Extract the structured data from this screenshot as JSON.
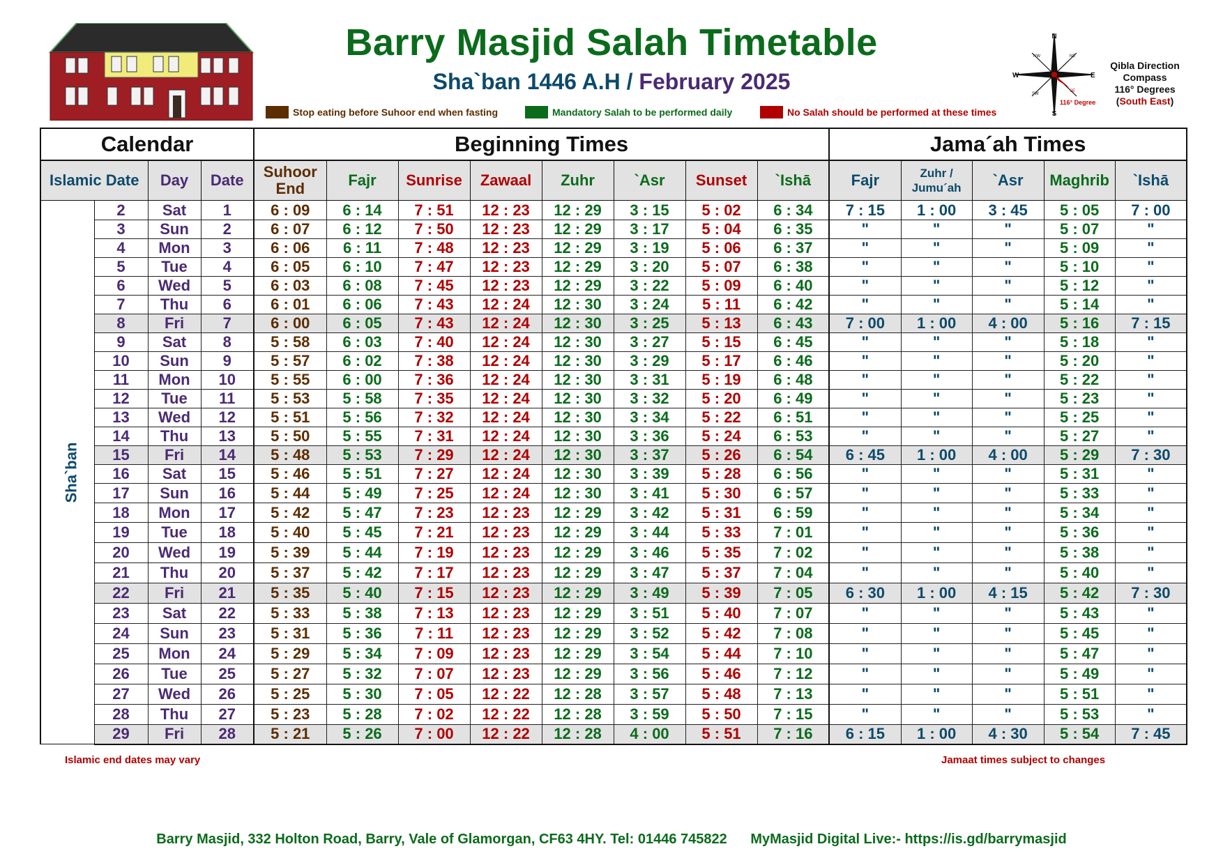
{
  "header": {
    "title": "Barry Masjid Salah Timetable",
    "islamic_month": "Sha`ban 1446 A.H",
    "separator": "/",
    "gregorian_month": "February 2025"
  },
  "legend": [
    {
      "label": "Stop eating before Suhoor end when fasting",
      "color": "#5c2d00"
    },
    {
      "label": "Mandatory Salah to be performed daily",
      "color": "#0b6b1c"
    },
    {
      "label": "No Salah should be performed at these times",
      "color": "#b00000"
    }
  ],
  "compass": {
    "labels": {
      "n": "N",
      "s": "S",
      "e": "E",
      "w": "W",
      "nw": "NW",
      "ne": "NE",
      "sw": "SW",
      "se": "SE"
    },
    "degree_label": "116° Degrees",
    "qibla_line1": "Qibla Direction",
    "qibla_line2": "Compass",
    "qibla_line3": "116° Degrees",
    "qibla_open": "(",
    "qibla_dir": "South East",
    "qibla_close": ")"
  },
  "table": {
    "groups": {
      "calendar": "Calendar",
      "beginning": "Beginning Times",
      "jamaah": "Jama´ah Times"
    },
    "columns": {
      "islamic_date": "Islamic Date",
      "day": "Day",
      "date": "Date",
      "suhoor_1": "Suhoor",
      "suhoor_2": "End",
      "fajr": "Fajr",
      "sunrise": "Sunrise",
      "zawaal": "Zawaal",
      "zuhr": "Zuhr",
      "asr": "`Asr",
      "sunset": "Sunset",
      "isha": "`Ishā",
      "j_fajr": "Fajr",
      "j_zuhr_1": "Zuhr /",
      "j_zuhr_2": "Jumu´ah",
      "j_asr": "`Asr",
      "j_maghrib": "Maghrib",
      "j_isha": "`Ishā"
    },
    "month_label": "Sha`ban",
    "rows": [
      {
        "islamic": "2",
        "day": "Sat",
        "date": "1",
        "suhoor": "6 : 09",
        "fajr": "6 : 14",
        "sunrise": "7 : 51",
        "zawaal": "12 : 23",
        "zuhr": "12 : 29",
        "asr": "3 : 15",
        "sunset": "5 : 02",
        "isha": "6 : 34",
        "jfajr": "7 : 15",
        "jzuhr": "1 : 00",
        "jasr": "3 : 45",
        "jmaghrib": "5 : 05",
        "jisha": "7 : 00"
      },
      {
        "islamic": "3",
        "day": "Sun",
        "date": "2",
        "suhoor": "6 : 07",
        "fajr": "6 : 12",
        "sunrise": "7 : 50",
        "zawaal": "12 : 23",
        "zuhr": "12 : 29",
        "asr": "3 : 17",
        "sunset": "5 : 04",
        "isha": "6 : 35",
        "jfajr": "\"",
        "jzuhr": "\"",
        "jasr": "\"",
        "jmaghrib": "5 : 07",
        "jisha": "\""
      },
      {
        "islamic": "4",
        "day": "Mon",
        "date": "3",
        "suhoor": "6 : 06",
        "fajr": "6 : 11",
        "sunrise": "7 : 48",
        "zawaal": "12 : 23",
        "zuhr": "12 : 29",
        "asr": "3 : 19",
        "sunset": "5 : 06",
        "isha": "6 : 37",
        "jfajr": "\"",
        "jzuhr": "\"",
        "jasr": "\"",
        "jmaghrib": "5 : 09",
        "jisha": "\""
      },
      {
        "islamic": "5",
        "day": "Tue",
        "date": "4",
        "suhoor": "6 : 05",
        "fajr": "6 : 10",
        "sunrise": "7 : 47",
        "zawaal": "12 : 23",
        "zuhr": "12 : 29",
        "asr": "3 : 20",
        "sunset": "5 : 07",
        "isha": "6 : 38",
        "jfajr": "\"",
        "jzuhr": "\"",
        "jasr": "\"",
        "jmaghrib": "5 : 10",
        "jisha": "\""
      },
      {
        "islamic": "6",
        "day": "Wed",
        "date": "5",
        "suhoor": "6 : 03",
        "fajr": "6 : 08",
        "sunrise": "7 : 45",
        "zawaal": "12 : 23",
        "zuhr": "12 : 29",
        "asr": "3 : 22",
        "sunset": "5 : 09",
        "isha": "6 : 40",
        "jfajr": "\"",
        "jzuhr": "\"",
        "jasr": "\"",
        "jmaghrib": "5 : 12",
        "jisha": "\""
      },
      {
        "islamic": "7",
        "day": "Thu",
        "date": "6",
        "suhoor": "6 : 01",
        "fajr": "6 : 06",
        "sunrise": "7 : 43",
        "zawaal": "12 : 24",
        "zuhr": "12 : 30",
        "asr": "3 : 24",
        "sunset": "5 : 11",
        "isha": "6 : 42",
        "jfajr": "\"",
        "jzuhr": "\"",
        "jasr": "\"",
        "jmaghrib": "5 : 14",
        "jisha": "\""
      },
      {
        "islamic": "8",
        "day": "Fri",
        "date": "7",
        "suhoor": "6 : 00",
        "fajr": "6 : 05",
        "sunrise": "7 : 43",
        "zawaal": "12 : 24",
        "zuhr": "12 : 30",
        "asr": "3 : 25",
        "sunset": "5 : 13",
        "isha": "6 : 43",
        "jfajr": "7 : 00",
        "jzuhr": "1 : 00",
        "jasr": "4 : 00",
        "jmaghrib": "5 : 16",
        "jisha": "7 : 15"
      },
      {
        "islamic": "9",
        "day": "Sat",
        "date": "8",
        "suhoor": "5 : 58",
        "fajr": "6 : 03",
        "sunrise": "7 : 40",
        "zawaal": "12 : 24",
        "zuhr": "12 : 30",
        "asr": "3 : 27",
        "sunset": "5 : 15",
        "isha": "6 : 45",
        "jfajr": "\"",
        "jzuhr": "\"",
        "jasr": "\"",
        "jmaghrib": "5 : 18",
        "jisha": "\""
      },
      {
        "islamic": "10",
        "day": "Sun",
        "date": "9",
        "suhoor": "5 : 57",
        "fajr": "6 : 02",
        "sunrise": "7 : 38",
        "zawaal": "12 : 24",
        "zuhr": "12 : 30",
        "asr": "3 : 29",
        "sunset": "5 : 17",
        "isha": "6 : 46",
        "jfajr": "\"",
        "jzuhr": "\"",
        "jasr": "\"",
        "jmaghrib": "5 : 20",
        "jisha": "\""
      },
      {
        "islamic": "11",
        "day": "Mon",
        "date": "10",
        "suhoor": "5 : 55",
        "fajr": "6 : 00",
        "sunrise": "7 : 36",
        "zawaal": "12 : 24",
        "zuhr": "12 : 30",
        "asr": "3 : 31",
        "sunset": "5 : 19",
        "isha": "6 : 48",
        "jfajr": "\"",
        "jzuhr": "\"",
        "jasr": "\"",
        "jmaghrib": "5 : 22",
        "jisha": "\""
      },
      {
        "islamic": "12",
        "day": "Tue",
        "date": "11",
        "suhoor": "5 : 53",
        "fajr": "5 : 58",
        "sunrise": "7 : 35",
        "zawaal": "12 : 24",
        "zuhr": "12 : 30",
        "asr": "3 : 32",
        "sunset": "5 : 20",
        "isha": "6 : 49",
        "jfajr": "\"",
        "jzuhr": "\"",
        "jasr": "\"",
        "jmaghrib": "5 : 23",
        "jisha": "\""
      },
      {
        "islamic": "13",
        "day": "Wed",
        "date": "12",
        "suhoor": "5 : 51",
        "fajr": "5 : 56",
        "sunrise": "7 : 32",
        "zawaal": "12 : 24",
        "zuhr": "12 : 30",
        "asr": "3 : 34",
        "sunset": "5 : 22",
        "isha": "6 : 51",
        "jfajr": "\"",
        "jzuhr": "\"",
        "jasr": "\"",
        "jmaghrib": "5 : 25",
        "jisha": "\""
      },
      {
        "islamic": "14",
        "day": "Thu",
        "date": "13",
        "suhoor": "5 : 50",
        "fajr": "5 : 55",
        "sunrise": "7 : 31",
        "zawaal": "12 : 24",
        "zuhr": "12 : 30",
        "asr": "3 : 36",
        "sunset": "5 : 24",
        "isha": "6 : 53",
        "jfajr": "\"",
        "jzuhr": "\"",
        "jasr": "\"",
        "jmaghrib": "5 : 27",
        "jisha": "\""
      },
      {
        "islamic": "15",
        "day": "Fri",
        "date": "14",
        "suhoor": "5 : 48",
        "fajr": "5 : 53",
        "sunrise": "7 : 29",
        "zawaal": "12 : 24",
        "zuhr": "12 : 30",
        "asr": "3 : 37",
        "sunset": "5 : 26",
        "isha": "6 : 54",
        "jfajr": "6 : 45",
        "jzuhr": "1 : 00",
        "jasr": "4 : 00",
        "jmaghrib": "5 : 29",
        "jisha": "7 : 30"
      },
      {
        "islamic": "16",
        "day": "Sat",
        "date": "15",
        "suhoor": "5 : 46",
        "fajr": "5 : 51",
        "sunrise": "7 : 27",
        "zawaal": "12 : 24",
        "zuhr": "12 : 30",
        "asr": "3 : 39",
        "sunset": "5 : 28",
        "isha": "6 : 56",
        "jfajr": "\"",
        "jzuhr": "\"",
        "jasr": "\"",
        "jmaghrib": "5 : 31",
        "jisha": "\""
      },
      {
        "islamic": "17",
        "day": "Sun",
        "date": "16",
        "suhoor": "5 : 44",
        "fajr": "5 : 49",
        "sunrise": "7 : 25",
        "zawaal": "12 : 24",
        "zuhr": "12 : 30",
        "asr": "3 : 41",
        "sunset": "5 : 30",
        "isha": "6 : 57",
        "jfajr": "\"",
        "jzuhr": "\"",
        "jasr": "\"",
        "jmaghrib": "5 : 33",
        "jisha": "\""
      },
      {
        "islamic": "18",
        "day": "Mon",
        "date": "17",
        "suhoor": "5 : 42",
        "fajr": "5 : 47",
        "sunrise": "7 : 23",
        "zawaal": "12 : 23",
        "zuhr": "12 : 29",
        "asr": "3 : 42",
        "sunset": "5 : 31",
        "isha": "6 : 59",
        "jfajr": "\"",
        "jzuhr": "\"",
        "jasr": "\"",
        "jmaghrib": "5 : 34",
        "jisha": "\""
      },
      {
        "islamic": "19",
        "day": "Tue",
        "date": "18",
        "suhoor": "5 : 40",
        "fajr": "5 : 45",
        "sunrise": "7 : 21",
        "zawaal": "12 : 23",
        "zuhr": "12 : 29",
        "asr": "3 : 44",
        "sunset": "5 : 33",
        "isha": "7 : 01",
        "jfajr": "\"",
        "jzuhr": "\"",
        "jasr": "\"",
        "jmaghrib": "5 : 36",
        "jisha": "\""
      },
      {
        "islamic": "20",
        "day": "Wed",
        "date": "19",
        "suhoor": "5 : 39",
        "fajr": "5 : 44",
        "sunrise": "7 : 19",
        "zawaal": "12 : 23",
        "zuhr": "12 : 29",
        "asr": "3 : 46",
        "sunset": "5 : 35",
        "isha": "7 : 02",
        "jfajr": "\"",
        "jzuhr": "\"",
        "jasr": "\"",
        "jmaghrib": "5 : 38",
        "jisha": "\""
      },
      {
        "islamic": "21",
        "day": "Thu",
        "date": "20",
        "suhoor": "5 : 37",
        "fajr": "5 : 42",
        "sunrise": "7 : 17",
        "zawaal": "12 : 23",
        "zuhr": "12 : 29",
        "asr": "3 : 47",
        "sunset": "5 : 37",
        "isha": "7 : 04",
        "jfajr": "\"",
        "jzuhr": "\"",
        "jasr": "\"",
        "jmaghrib": "5 : 40",
        "jisha": "\""
      },
      {
        "islamic": "22",
        "day": "Fri",
        "date": "21",
        "suhoor": "5 : 35",
        "fajr": "5 : 40",
        "sunrise": "7 : 15",
        "zawaal": "12 : 23",
        "zuhr": "12 : 29",
        "asr": "3 : 49",
        "sunset": "5 : 39",
        "isha": "7 : 05",
        "jfajr": "6 : 30",
        "jzuhr": "1 : 00",
        "jasr": "4 : 15",
        "jmaghrib": "5 : 42",
        "jisha": "7 : 30"
      },
      {
        "islamic": "23",
        "day": "Sat",
        "date": "22",
        "suhoor": "5 : 33",
        "fajr": "5 : 38",
        "sunrise": "7 : 13",
        "zawaal": "12 : 23",
        "zuhr": "12 : 29",
        "asr": "3 : 51",
        "sunset": "5 : 40",
        "isha": "7 : 07",
        "jfajr": "\"",
        "jzuhr": "\"",
        "jasr": "\"",
        "jmaghrib": "5 : 43",
        "jisha": "\""
      },
      {
        "islamic": "24",
        "day": "Sun",
        "date": "23",
        "suhoor": "5 : 31",
        "fajr": "5 : 36",
        "sunrise": "7 : 11",
        "zawaal": "12 : 23",
        "zuhr": "12 : 29",
        "asr": "3 : 52",
        "sunset": "5 : 42",
        "isha": "7 : 08",
        "jfajr": "\"",
        "jzuhr": "\"",
        "jasr": "\"",
        "jmaghrib": "5 : 45",
        "jisha": "\""
      },
      {
        "islamic": "25",
        "day": "Mon",
        "date": "24",
        "suhoor": "5 : 29",
        "fajr": "5 : 34",
        "sunrise": "7 : 09",
        "zawaal": "12 : 23",
        "zuhr": "12 : 29",
        "asr": "3 : 54",
        "sunset": "5 : 44",
        "isha": "7 : 10",
        "jfajr": "\"",
        "jzuhr": "\"",
        "jasr": "\"",
        "jmaghrib": "5 : 47",
        "jisha": "\""
      },
      {
        "islamic": "26",
        "day": "Tue",
        "date": "25",
        "suhoor": "5 : 27",
        "fajr": "5 : 32",
        "sunrise": "7 : 07",
        "zawaal": "12 : 23",
        "zuhr": "12 : 29",
        "asr": "3 : 56",
        "sunset": "5 : 46",
        "isha": "7 : 12",
        "jfajr": "\"",
        "jzuhr": "\"",
        "jasr": "\"",
        "jmaghrib": "5 : 49",
        "jisha": "\""
      },
      {
        "islamic": "27",
        "day": "Wed",
        "date": "26",
        "suhoor": "5 : 25",
        "fajr": "5 : 30",
        "sunrise": "7 : 05",
        "zawaal": "12 : 22",
        "zuhr": "12 : 28",
        "asr": "3 : 57",
        "sunset": "5 : 48",
        "isha": "7 : 13",
        "jfajr": "\"",
        "jzuhr": "\"",
        "jasr": "\"",
        "jmaghrib": "5 : 51",
        "jisha": "\""
      },
      {
        "islamic": "28",
        "day": "Thu",
        "date": "27",
        "suhoor": "5 : 23",
        "fajr": "5 : 28",
        "sunrise": "7 : 02",
        "zawaal": "12 : 22",
        "zuhr": "12 : 28",
        "asr": "3 : 59",
        "sunset": "5 : 50",
        "isha": "7 : 15",
        "jfajr": "\"",
        "jzuhr": "\"",
        "jasr": "\"",
        "jmaghrib": "5 : 53",
        "jisha": "\""
      },
      {
        "islamic": "29",
        "day": "Fri",
        "date": "28",
        "suhoor": "5 : 21",
        "fajr": "5 : 26",
        "sunrise": "7 : 00",
        "zawaal": "12 : 22",
        "zuhr": "12 : 28",
        "asr": "4 : 00",
        "sunset": "5 : 51",
        "isha": "7 : 16",
        "jfajr": "6 : 15",
        "jzuhr": "1 : 00",
        "jasr": "4 : 30",
        "jmaghrib": "5 : 54",
        "jisha": "7 : 45"
      }
    ]
  },
  "notes": {
    "left": "Islamic end dates may vary",
    "right": "Jamaat times subject to changes"
  },
  "footer": {
    "address": "Barry Masjid, 332 Holton Road, Barry, Vale of Glamorgan, CF63 4HY. Tel: 01446 745822",
    "live": "MyMasjid Digital Live:- https://is.gd/barrymasjid"
  }
}
